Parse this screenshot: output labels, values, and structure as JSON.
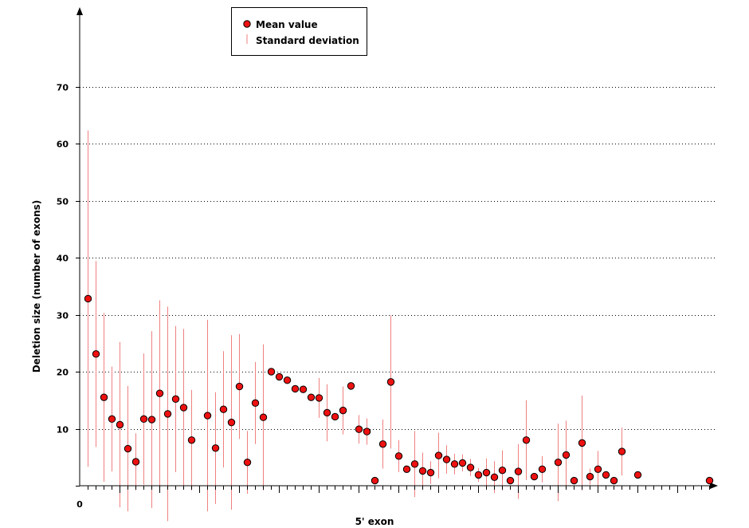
{
  "chart_data": {
    "type": "scatter",
    "title": "",
    "xlabel": "5' exon",
    "ylabel": "Deletion size (number of exons)",
    "x_tick_labels": [
      "0"
    ],
    "y_ticks": [
      0,
      10,
      20,
      30,
      40,
      50,
      60,
      70
    ],
    "ylim": [
      0,
      70
    ],
    "xlim": [
      0,
      79
    ],
    "grid": "horizontal dotted",
    "legend_position": "top-center",
    "colors": {
      "marker_fill": "#ee1111",
      "marker_edge": "#000000",
      "error_bar": "#f08080"
    },
    "series": [
      {
        "name": "Mean value",
        "x": [
          1,
          2,
          3,
          4,
          5,
          6,
          7,
          8,
          9,
          10,
          11,
          12,
          13,
          14,
          15,
          16,
          17,
          18,
          19,
          20,
          21,
          22,
          23,
          24,
          25,
          26,
          27,
          28,
          29,
          30,
          31,
          32,
          33,
          34,
          35,
          36,
          37,
          38,
          39,
          40,
          41,
          42,
          43,
          44,
          45,
          46,
          47,
          48,
          49,
          50,
          51,
          52,
          53,
          54,
          55,
          56,
          57,
          58,
          59,
          60,
          61,
          62,
          63,
          64,
          65,
          66,
          67,
          68,
          69,
          70,
          71,
          72,
          73,
          74,
          75,
          76,
          77,
          78,
          79
        ],
        "y": [
          32.8,
          23.1,
          15.5,
          11.7,
          10.7,
          6.5,
          4.2,
          11.7,
          11.6,
          16.2,
          12.6,
          15.2,
          13.7,
          8.0,
          null,
          12.3,
          6.6,
          13.4,
          11.1,
          17.4,
          4.1,
          14.5,
          12.0,
          20.0,
          19.1,
          18.5,
          17.0,
          16.9,
          15.5,
          15.4,
          12.8,
          12.1,
          13.2,
          17.5,
          9.9,
          9.5,
          0.9,
          7.3,
          18.2,
          5.2,
          2.9,
          3.8,
          2.6,
          2.3,
          5.3,
          4.6,
          3.8,
          4.0,
          3.2,
          1.9,
          2.3,
          1.5,
          2.7,
          0.9,
          2.5,
          8.0,
          1.6,
          2.9,
          null,
          4.1,
          5.4,
          0.9,
          7.5,
          1.6,
          2.9,
          1.9,
          0.9,
          6.0,
          null,
          1.9,
          null,
          null,
          null,
          null,
          null,
          null,
          null,
          null,
          0.9
        ]
      },
      {
        "name": "Standard deviation",
        "sd": [
          29.5,
          16.3,
          14.8,
          9.2,
          14.5,
          11.0,
          5.0,
          11.5,
          15.5,
          16.3,
          18.8,
          12.8,
          13.8,
          8.8,
          null,
          16.8,
          9.8,
          10.2,
          15.3,
          9.2,
          5.5,
          7.2,
          12.8,
          0,
          0,
          0,
          0,
          0,
          0,
          3.5,
          5.0,
          0,
          4.2,
          0,
          2.5,
          2.3,
          0,
          4.3,
          11.7,
          2.8,
          0,
          5.8,
          3.2,
          2.0,
          4.0,
          2.5,
          1.8,
          1.5,
          1.5,
          1.2,
          2.5,
          2.8,
          3.5,
          0,
          4.8,
          7.0,
          0,
          2.3,
          null,
          6.8,
          6.0,
          0,
          8.3,
          1.4,
          3.2,
          0,
          0,
          4.2,
          null,
          0,
          null,
          null,
          null,
          null,
          null,
          null,
          null,
          null,
          0
        ]
      }
    ]
  }
}
